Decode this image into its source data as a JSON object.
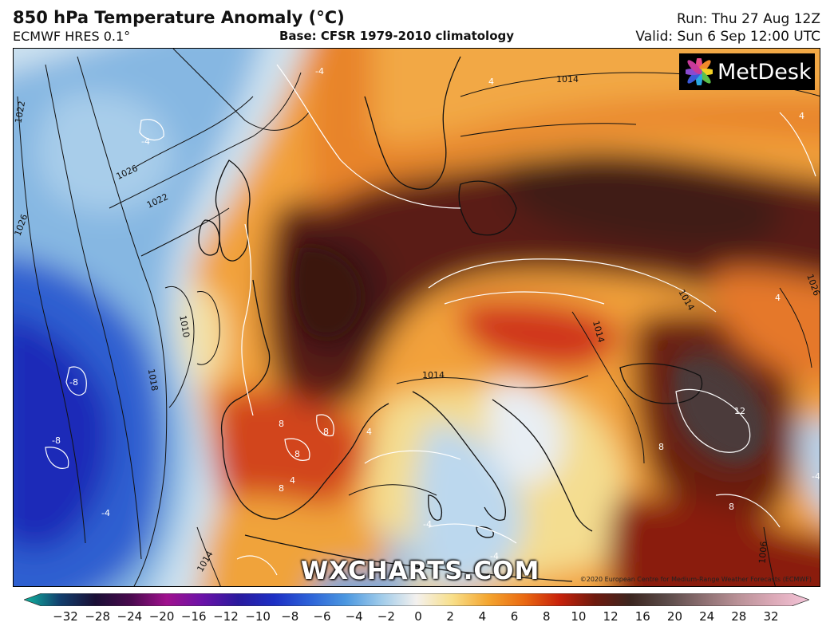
{
  "header": {
    "title": "850 hPa Temperature Anomaly (°C)",
    "model": "ECMWF HRES 0.1°",
    "base": "Base: CFSR 1979-2010 climatology",
    "run": "Run: Thu 27 Aug 12Z",
    "valid": "Valid: Sun 6 Sep 12:00 UTC"
  },
  "logo": {
    "text": "MetDesk",
    "icon": "flower-logo-icon"
  },
  "watermark": "WXCHARTS.COM",
  "copyright": "©2020 European Centre for Medium-Range Weather Forecasts (ECMWF)",
  "isobar_labels": [
    "1022",
    "1026",
    "1022",
    "1026",
    "1014",
    "1010",
    "1018",
    "1014",
    "1014",
    "1014",
    "1026",
    "1006",
    "1014"
  ],
  "anomaly_labels": [
    "-4",
    "-4",
    "-8",
    "-8",
    "-4",
    "4",
    "4",
    "8",
    "8",
    "8",
    "8",
    "4",
    "4",
    "12",
    "8",
    "8",
    "-4",
    "-4",
    "4",
    "-4"
  ],
  "colorbar": {
    "ticks": [
      "−32",
      "−28",
      "−24",
      "−20",
      "−16",
      "−12",
      "−10",
      "−8",
      "−6",
      "−4",
      "−2",
      "0",
      "2",
      "4",
      "6",
      "8",
      "10",
      "12",
      "16",
      "20",
      "24",
      "28",
      "32"
    ],
    "colors": [
      "#0fb6a0",
      "#123f6e",
      "#1a0f35",
      "#4a0a4e",
      "#a0118e",
      "#6b12a8",
      "#2a1a9e",
      "#1d2fc4",
      "#2d62d8",
      "#4b97e0",
      "#9fcbea",
      "#f4f1ee",
      "#f8df8a",
      "#f4a630",
      "#ea6a12",
      "#c8220b",
      "#6e1a0e",
      "#3c2620",
      "#5a4a48",
      "#8b6e70",
      "#b99197",
      "#dcaab8",
      "#f4c4d8"
    ]
  }
}
